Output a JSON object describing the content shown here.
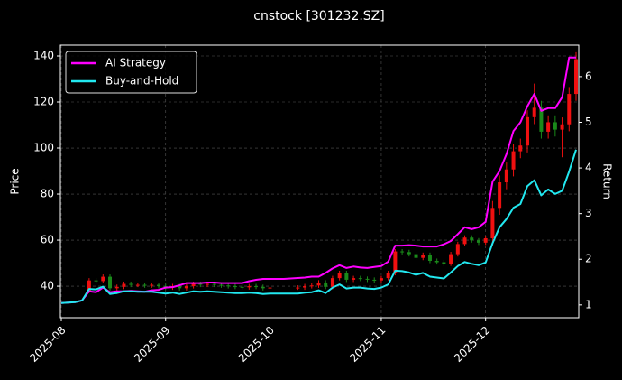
{
  "chart_data": {
    "type": "candlestick",
    "title": "cnstock [301232.SZ]",
    "ylabel": "Price",
    "y2label": "Return",
    "categories": [
      "2025-08",
      null,
      null,
      null,
      null,
      null,
      null,
      null,
      null,
      null,
      null,
      null,
      null,
      null,
      null,
      "2025-09",
      null,
      null,
      null,
      null,
      null,
      null,
      null,
      null,
      null,
      null,
      null,
      null,
      null,
      null,
      "2025-10",
      null,
      null,
      null,
      null,
      null,
      null,
      null,
      null,
      null,
      null,
      null,
      null,
      null,
      null,
      null,
      "2025-11",
      null,
      null,
      null,
      null,
      null,
      null,
      null,
      null,
      null,
      null,
      null,
      null,
      null,
      null,
      "2025-12",
      null,
      null,
      null,
      null,
      null,
      null,
      null,
      null,
      null,
      null,
      null,
      null,
      null
    ],
    "open": [
      null,
      null,
      null,
      null,
      38.0,
      42.5,
      42.2,
      44.1,
      39.1,
      39.7,
      41.0,
      40.6,
      40.6,
      40.3,
      40.6,
      40.0,
      39.4,
      40.0,
      39.1,
      40.0,
      41.0,
      40.6,
      41.0,
      40.6,
      40.3,
      40.0,
      39.7,
      39.5,
      40.0,
      39.7,
      39.1,
      null,
      null,
      null,
      39.4,
      39.4,
      40.0,
      40.3,
      41.6,
      39.7,
      43.5,
      45.7,
      42.8,
      43.5,
      43.2,
      42.8,
      42.5,
      43.5,
      45.7,
      55.1,
      54.8,
      53.9,
      52.3,
      53.6,
      51.0,
      50.4,
      49.8,
      53.9,
      58.3,
      61.1,
      59.9,
      58.9,
      60.8,
      74.0,
      85.1,
      90.7,
      98.6,
      101.1,
      113.4,
      117.5,
      107.1,
      111.2,
      108.0,
      110.3,
      123.5
    ],
    "high": [
      null,
      null,
      null,
      null,
      43.5,
      43.5,
      45.1,
      45.1,
      40.7,
      42.0,
      42.0,
      41.6,
      41.6,
      41.6,
      41.6,
      41.0,
      41.0,
      41.0,
      41.0,
      42.0,
      42.0,
      42.0,
      42.0,
      41.6,
      41.3,
      41.0,
      40.7,
      41.0,
      41.0,
      40.7,
      40.4,
      null,
      null,
      null,
      40.4,
      41.0,
      41.3,
      42.6,
      42.6,
      44.5,
      46.7,
      46.7,
      44.5,
      44.5,
      44.2,
      43.8,
      44.5,
      46.7,
      56.1,
      56.1,
      55.8,
      54.9,
      54.6,
      54.6,
      52.0,
      51.4,
      54.9,
      59.3,
      62.1,
      62.1,
      60.9,
      61.8,
      77.0,
      88.1,
      93.7,
      101.6,
      104.1,
      116.4,
      128.0,
      120.5,
      114.2,
      114.2,
      113.3,
      126.5,
      141.6
    ],
    "low": [
      null,
      null,
      null,
      null,
      37.0,
      41.2,
      41.2,
      38.1,
      38.1,
      38.7,
      39.6,
      39.6,
      39.3,
      39.3,
      39.0,
      38.4,
      38.4,
      38.1,
      38.1,
      39.0,
      39.6,
      39.6,
      39.6,
      39.3,
      39.0,
      38.7,
      38.5,
      38.5,
      38.7,
      38.1,
      38.1,
      null,
      null,
      null,
      38.4,
      38.4,
      39.0,
      39.3,
      38.7,
      38.7,
      42.5,
      41.8,
      41.8,
      42.2,
      41.8,
      41.5,
      41.5,
      42.5,
      44.7,
      53.8,
      52.9,
      51.3,
      51.3,
      50.0,
      49.4,
      48.8,
      48.8,
      52.9,
      57.3,
      58.9,
      57.9,
      57.9,
      57.8,
      71.0,
      82.1,
      87.7,
      95.6,
      98.1,
      110.4,
      104.1,
      104.1,
      105.0,
      96.0,
      107.3,
      120.5
    ],
    "close": [
      null,
      null,
      null,
      null,
      42.5,
      42.2,
      44.1,
      39.1,
      39.7,
      41.0,
      40.6,
      40.6,
      40.3,
      40.6,
      40.0,
      39.4,
      40.0,
      39.1,
      40.0,
      41.0,
      40.6,
      41.0,
      40.6,
      40.3,
      40.0,
      39.7,
      39.5,
      40.0,
      39.7,
      39.1,
      39.4,
      null,
      null,
      null,
      39.4,
      40.0,
      40.3,
      41.6,
      39.7,
      43.5,
      45.7,
      42.8,
      43.5,
      43.2,
      42.8,
      42.5,
      43.5,
      45.7,
      55.1,
      54.8,
      53.9,
      52.3,
      53.6,
      51.0,
      50.4,
      49.8,
      53.9,
      58.3,
      61.1,
      59.9,
      58.9,
      60.8,
      74.0,
      85.1,
      90.7,
      98.6,
      101.1,
      113.4,
      117.5,
      107.1,
      111.2,
      108.0,
      110.3,
      123.5,
      138.6
    ],
    "up_color": "#f01010",
    "down_color": "#1a8a1a",
    "series": [
      {
        "name": "AI Strategy",
        "color": "#ff00ff",
        "axis": "y2",
        "values": [
          1.04,
          1.05,
          1.06,
          1.1,
          1.3,
          1.28,
          1.38,
          1.28,
          1.3,
          1.3,
          1.31,
          1.3,
          1.29,
          1.32,
          1.33,
          1.38,
          1.39,
          1.43,
          1.48,
          1.48,
          1.48,
          1.49,
          1.49,
          1.48,
          1.48,
          1.48,
          1.48,
          1.52,
          1.55,
          1.57,
          1.57,
          1.57,
          1.57,
          1.58,
          1.59,
          1.6,
          1.62,
          1.62,
          1.7,
          1.8,
          1.87,
          1.81,
          1.84,
          1.82,
          1.81,
          1.83,
          1.85,
          1.95,
          2.3,
          2.3,
          2.31,
          2.3,
          2.28,
          2.28,
          2.28,
          2.33,
          2.4,
          2.55,
          2.7,
          2.66,
          2.7,
          2.82,
          3.7,
          3.93,
          4.3,
          4.81,
          5.0,
          5.35,
          5.62,
          5.25,
          5.31,
          5.31,
          5.55,
          6.42,
          6.42
        ]
      },
      {
        "name": "Buy-and-Hold",
        "color": "#22e8f0",
        "axis": "y2",
        "values": [
          1.04,
          1.05,
          1.06,
          1.1,
          1.35,
          1.34,
          1.4,
          1.24,
          1.26,
          1.3,
          1.3,
          1.29,
          1.29,
          1.29,
          1.27,
          1.25,
          1.27,
          1.24,
          1.27,
          1.3,
          1.29,
          1.3,
          1.29,
          1.28,
          1.27,
          1.26,
          1.26,
          1.27,
          1.26,
          1.24,
          1.25,
          1.25,
          1.25,
          1.25,
          1.25,
          1.27,
          1.28,
          1.32,
          1.26,
          1.38,
          1.45,
          1.36,
          1.38,
          1.38,
          1.36,
          1.35,
          1.38,
          1.45,
          1.75,
          1.74,
          1.71,
          1.66,
          1.7,
          1.62,
          1.6,
          1.58,
          1.71,
          1.85,
          1.94,
          1.9,
          1.87,
          1.93,
          2.35,
          2.7,
          2.88,
          3.13,
          3.21,
          3.6,
          3.73,
          3.4,
          3.53,
          3.43,
          3.5,
          3.92,
          4.4
        ]
      }
    ],
    "ylim": [
      26.3,
      144.7
    ],
    "yticks": [
      40,
      60,
      80,
      100,
      120,
      140
    ],
    "y2lim": [
      0.72,
      6.69
    ],
    "y2ticks": [
      1,
      2,
      3,
      4,
      5,
      6
    ],
    "grid": true,
    "legend": "upper left"
  }
}
